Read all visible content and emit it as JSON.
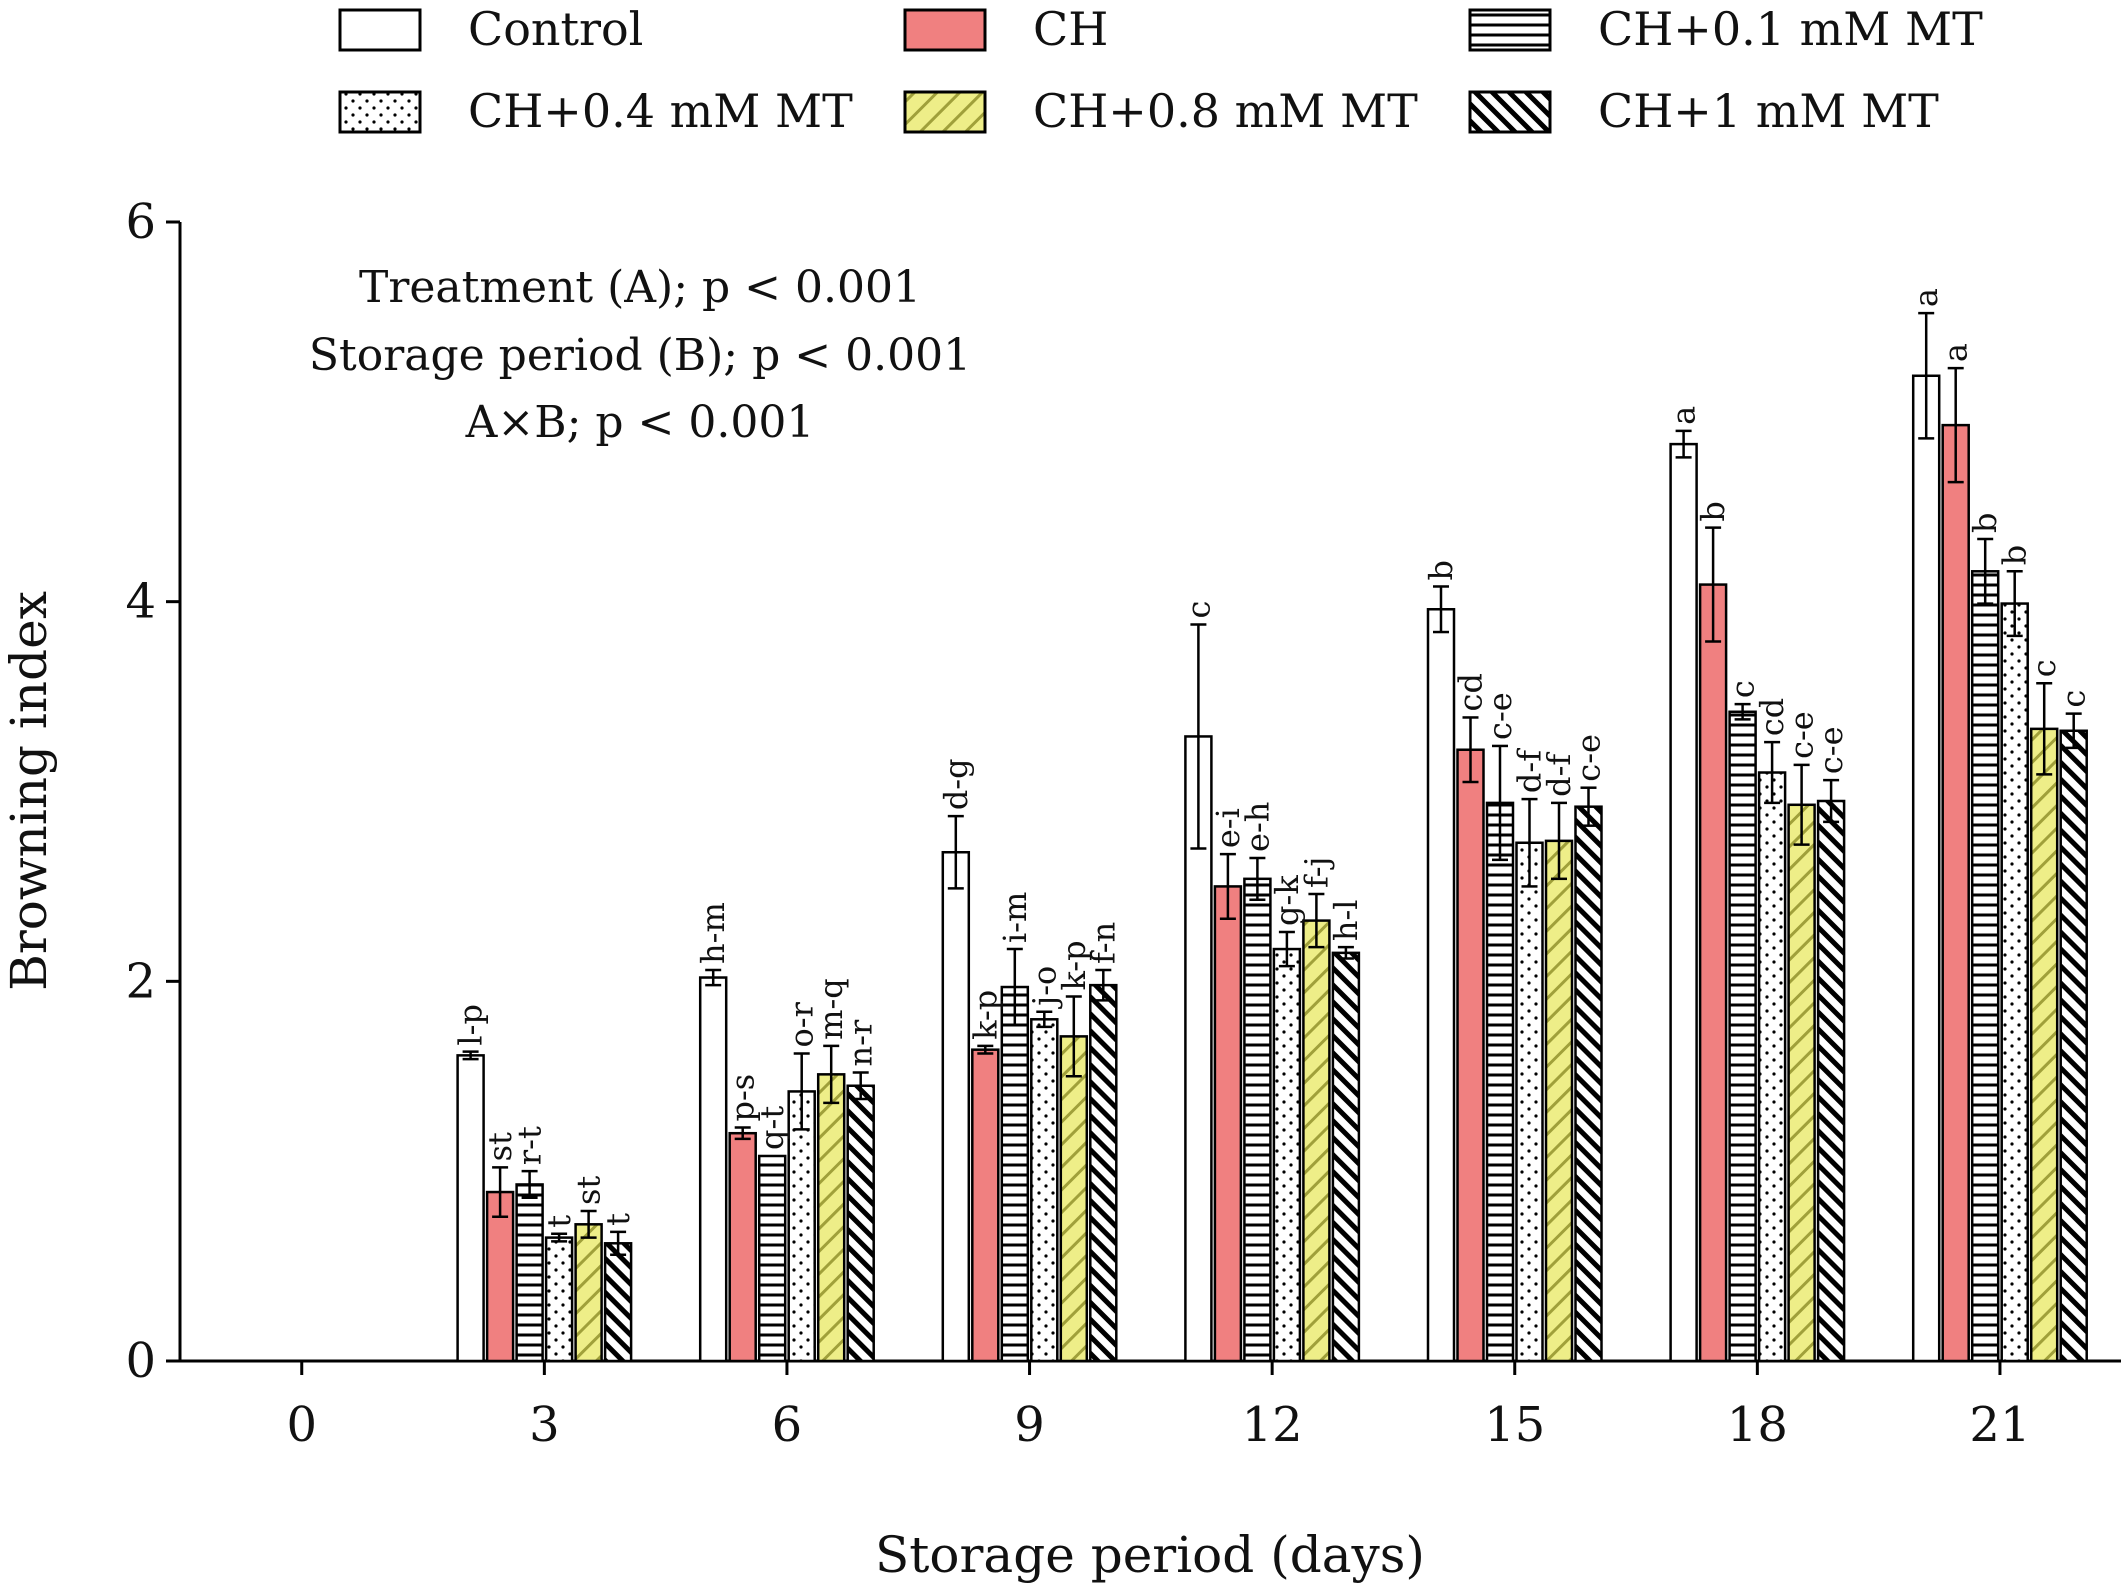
{
  "chart_data": {
    "type": "bar",
    "xlabel": "Storage period (days)",
    "ylabel": "Browning index",
    "ylim": [
      0,
      6
    ],
    "yticks": [
      "0",
      "2",
      "4",
      "6"
    ],
    "categories": [
      "0",
      "3",
      "6",
      "9",
      "12",
      "15",
      "18",
      "21"
    ],
    "legend_position": "top",
    "annotations": [
      "Treatment (A); p < 0.001",
      "Storage period (B); p < 0.001",
      "A×B; p < 0.001"
    ],
    "series": [
      {
        "name": "Control",
        "pattern": "plain",
        "color": "#ffffff",
        "values": [
          0,
          1.61,
          2.02,
          2.68,
          3.29,
          3.96,
          4.83,
          5.19
        ],
        "errors": [
          0,
          0.02,
          0.04,
          0.19,
          0.59,
          0.12,
          0.07,
          0.33
        ],
        "labels": [
          "",
          "l-p",
          "h-m",
          "d-g",
          "c",
          "b",
          "a",
          "a"
        ]
      },
      {
        "name": "CH",
        "pattern": "solid",
        "color": "#f08080",
        "values": [
          0,
          0.89,
          1.2,
          1.64,
          2.5,
          3.22,
          4.09,
          4.93
        ],
        "errors": [
          0,
          0.13,
          0.03,
          0.02,
          0.17,
          0.17,
          0.3,
          0.3
        ],
        "labels": [
          "",
          "st",
          "p-s",
          "k-p",
          "e-i",
          "cd",
          "b",
          "a"
        ]
      },
      {
        "name": "CH+0.1 mM MT",
        "pattern": "horizontal",
        "color": "#ffffff",
        "values": [
          0,
          0.93,
          1.08,
          1.97,
          2.54,
          2.94,
          3.42,
          4.16
        ],
        "errors": [
          0,
          0.07,
          0,
          0.2,
          0.11,
          0.3,
          0.04,
          0.17
        ],
        "labels": [
          "",
          "r-t",
          "q-t",
          "i-m",
          "e-h",
          "c-e",
          "c",
          "b"
        ]
      },
      {
        "name": "CH+0.4 mM MT",
        "pattern": "dots",
        "color": "#ffffff",
        "values": [
          0,
          0.65,
          1.42,
          1.8,
          2.17,
          2.73,
          3.1,
          3.99
        ],
        "errors": [
          0,
          0.02,
          0.2,
          0.04,
          0.09,
          0.23,
          0.16,
          0.17
        ],
        "labels": [
          "",
          "t",
          "o-r",
          "j-o",
          "g-k",
          "d-f",
          "cd",
          "b"
        ]
      },
      {
        "name": "CH+0.8 mM MT",
        "pattern": "diag-yellow",
        "color": "#eeee88",
        "values": [
          0,
          0.72,
          1.51,
          1.71,
          2.32,
          2.74,
          2.93,
          3.33
        ],
        "errors": [
          0,
          0.07,
          0.15,
          0.21,
          0.14,
          0.2,
          0.21,
          0.24
        ],
        "labels": [
          "",
          "st",
          "m-q",
          "k-p",
          "f-j",
          "d-f",
          "c-e",
          "c"
        ]
      },
      {
        "name": "CH+1 mM MT",
        "pattern": "diag-dense",
        "color": "#000000",
        "values": [
          0,
          0.62,
          1.45,
          1.98,
          2.15,
          2.92,
          2.95,
          3.32
        ],
        "errors": [
          0,
          0.06,
          0.07,
          0.08,
          0.03,
          0.1,
          0.11,
          0.09
        ],
        "labels": [
          "",
          "t",
          "n-r",
          "f-n",
          "h-l",
          "c-e",
          "c-e",
          "c"
        ]
      }
    ]
  }
}
